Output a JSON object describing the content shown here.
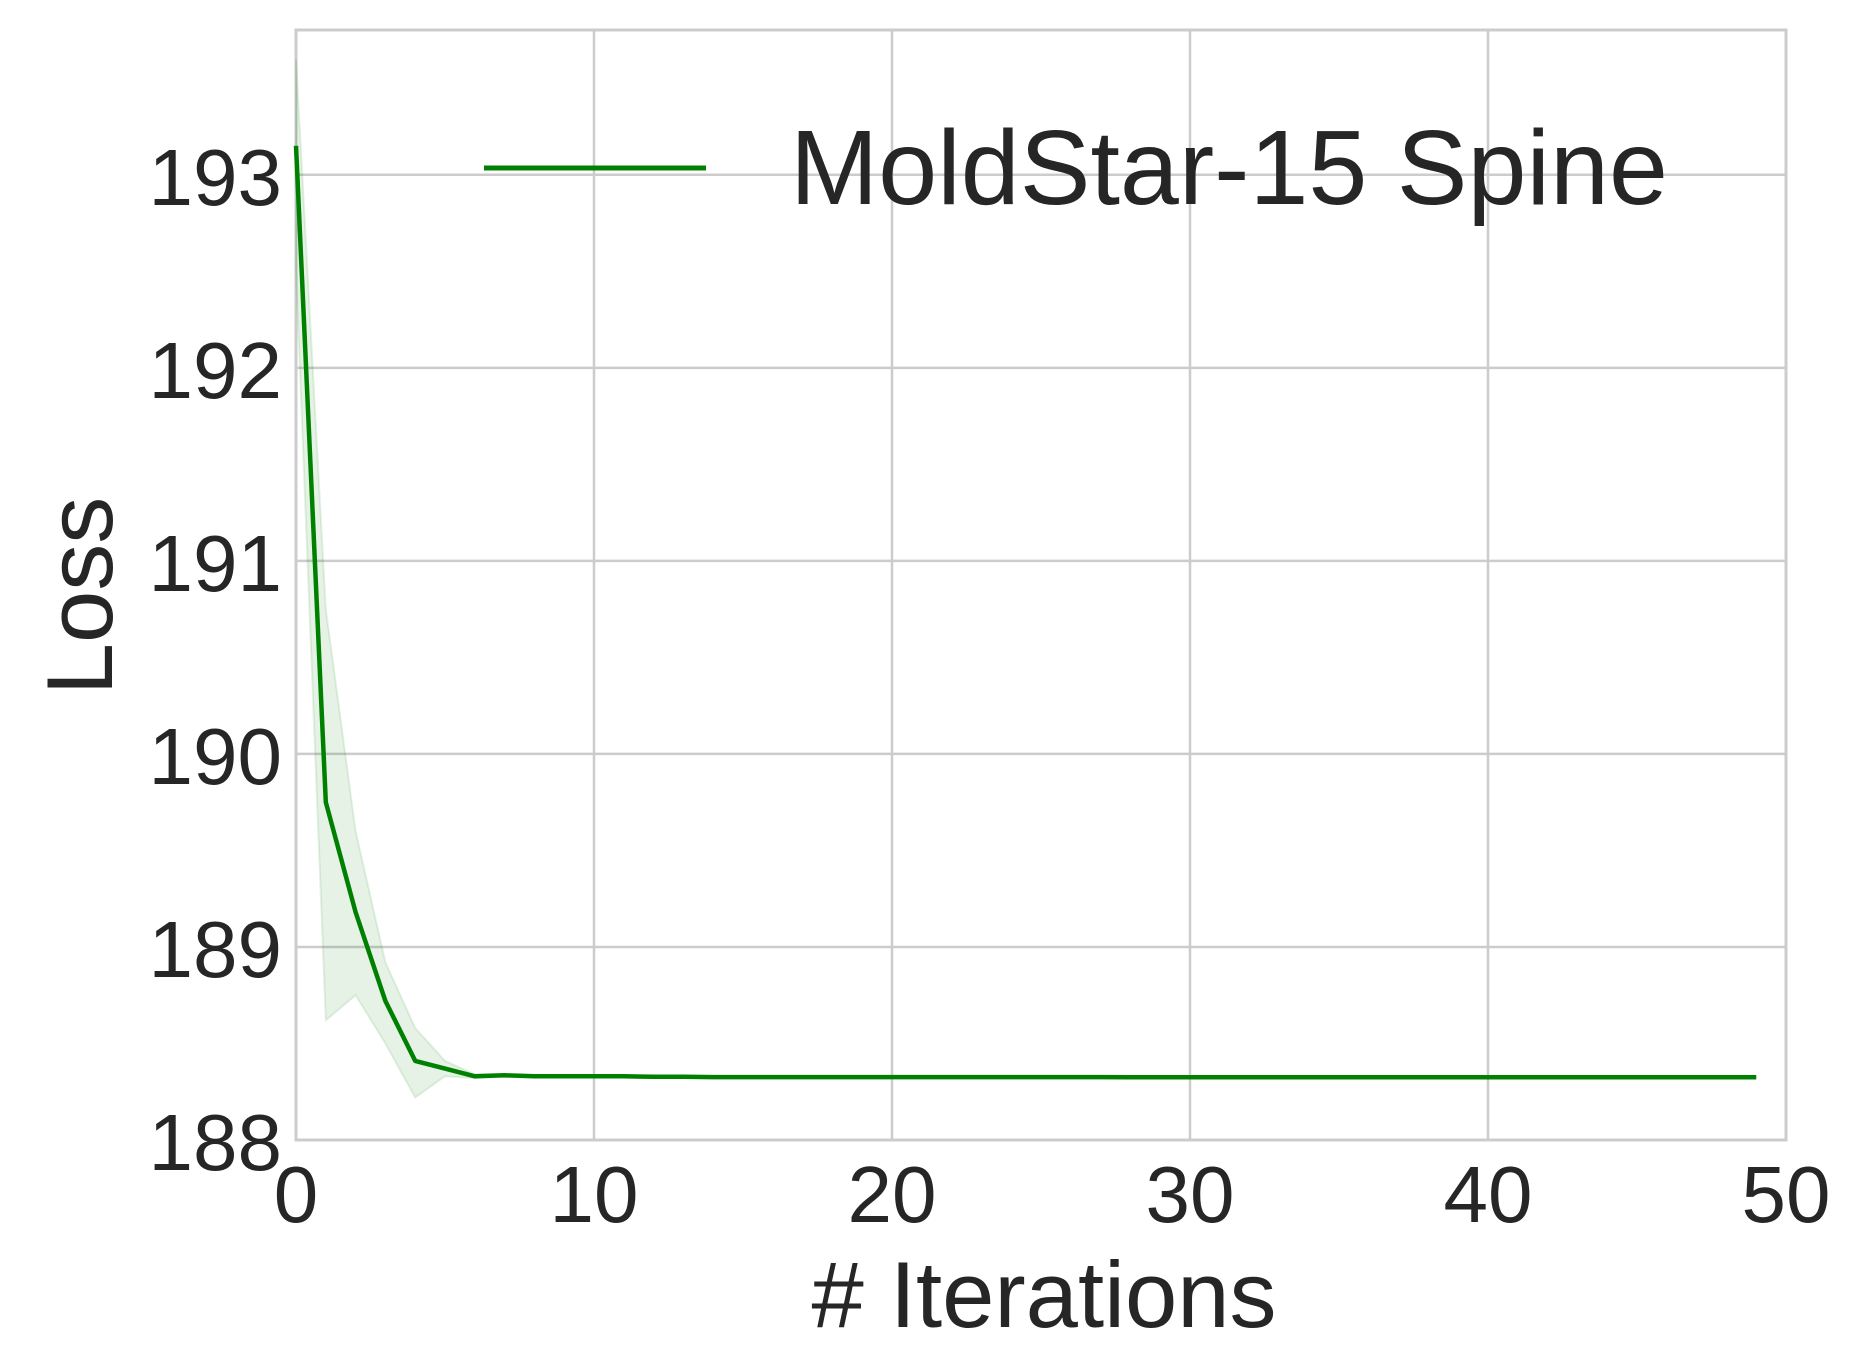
{
  "chart_data": {
    "type": "line",
    "title": "",
    "xlabel": "# Iterations",
    "ylabel": "Loss",
    "xlim": [
      0,
      50
    ],
    "ylim": [
      188,
      193.75
    ],
    "x_ticks": [
      0,
      10,
      20,
      30,
      40,
      50
    ],
    "x_tick_labels": [
      "0",
      "10",
      "20",
      "30",
      "40",
      "50"
    ],
    "y_ticks": [
      188,
      189,
      190,
      191,
      192,
      193
    ],
    "y_tick_labels": [
      "188",
      "189",
      "190",
      "191",
      "192",
      "193"
    ],
    "grid": true,
    "legend_position": "top-right",
    "series": [
      {
        "name": "MoldStar-15 Spine",
        "color": "#008000",
        "band_color": "#008000",
        "x": [
          0,
          1,
          2,
          3,
          4,
          5,
          6,
          7,
          8,
          9,
          10,
          11,
          12,
          13,
          14,
          15,
          16,
          17,
          18,
          19,
          20,
          21,
          22,
          23,
          24,
          25,
          26,
          27,
          28,
          29,
          30,
          31,
          32,
          33,
          34,
          35,
          36,
          37,
          38,
          39,
          40,
          41,
          42,
          43,
          44,
          45,
          46,
          47,
          48,
          49
        ],
        "values": [
          193.15,
          189.75,
          189.18,
          188.72,
          188.41,
          188.37,
          188.33,
          188.335,
          188.33,
          188.33,
          188.33,
          188.33,
          188.328,
          188.328,
          188.326,
          188.326,
          188.326,
          188.326,
          188.326,
          188.326,
          188.326,
          188.326,
          188.326,
          188.326,
          188.326,
          188.326,
          188.326,
          188.326,
          188.325,
          188.325,
          188.325,
          188.325,
          188.325,
          188.325,
          188.325,
          188.325,
          188.325,
          188.325,
          188.325,
          188.325,
          188.325,
          188.325,
          188.325,
          188.325,
          188.325,
          188.325,
          188.325,
          188.325,
          188.325,
          188.325
        ],
        "lower": [
          192.5,
          188.62,
          188.75,
          188.5,
          188.22,
          188.33,
          188.32,
          188.33,
          188.325,
          188.325,
          188.325,
          188.325,
          188.324,
          188.324,
          188.322,
          188.322,
          188.322,
          188.322,
          188.322,
          188.322,
          188.322,
          188.322,
          188.322,
          188.322,
          188.322,
          188.322,
          188.322,
          188.322,
          188.321,
          188.321,
          188.321,
          188.321,
          188.321,
          188.321,
          188.321,
          188.321,
          188.321,
          188.321,
          188.321,
          188.321,
          188.321,
          188.321,
          188.321,
          188.321,
          188.321,
          188.321,
          188.321,
          188.321,
          188.321,
          188.321
        ],
        "upper": [
          193.6,
          190.75,
          189.6,
          188.92,
          188.58,
          188.41,
          188.34,
          188.34,
          188.335,
          188.335,
          188.335,
          188.335,
          188.332,
          188.332,
          188.33,
          188.33,
          188.33,
          188.33,
          188.33,
          188.33,
          188.33,
          188.33,
          188.33,
          188.33,
          188.33,
          188.33,
          188.33,
          188.33,
          188.329,
          188.329,
          188.329,
          188.329,
          188.329,
          188.329,
          188.329,
          188.329,
          188.329,
          188.329,
          188.329,
          188.329,
          188.329,
          188.329,
          188.329,
          188.329,
          188.329,
          188.329,
          188.329,
          188.329,
          188.329,
          188.329
        ]
      }
    ]
  }
}
